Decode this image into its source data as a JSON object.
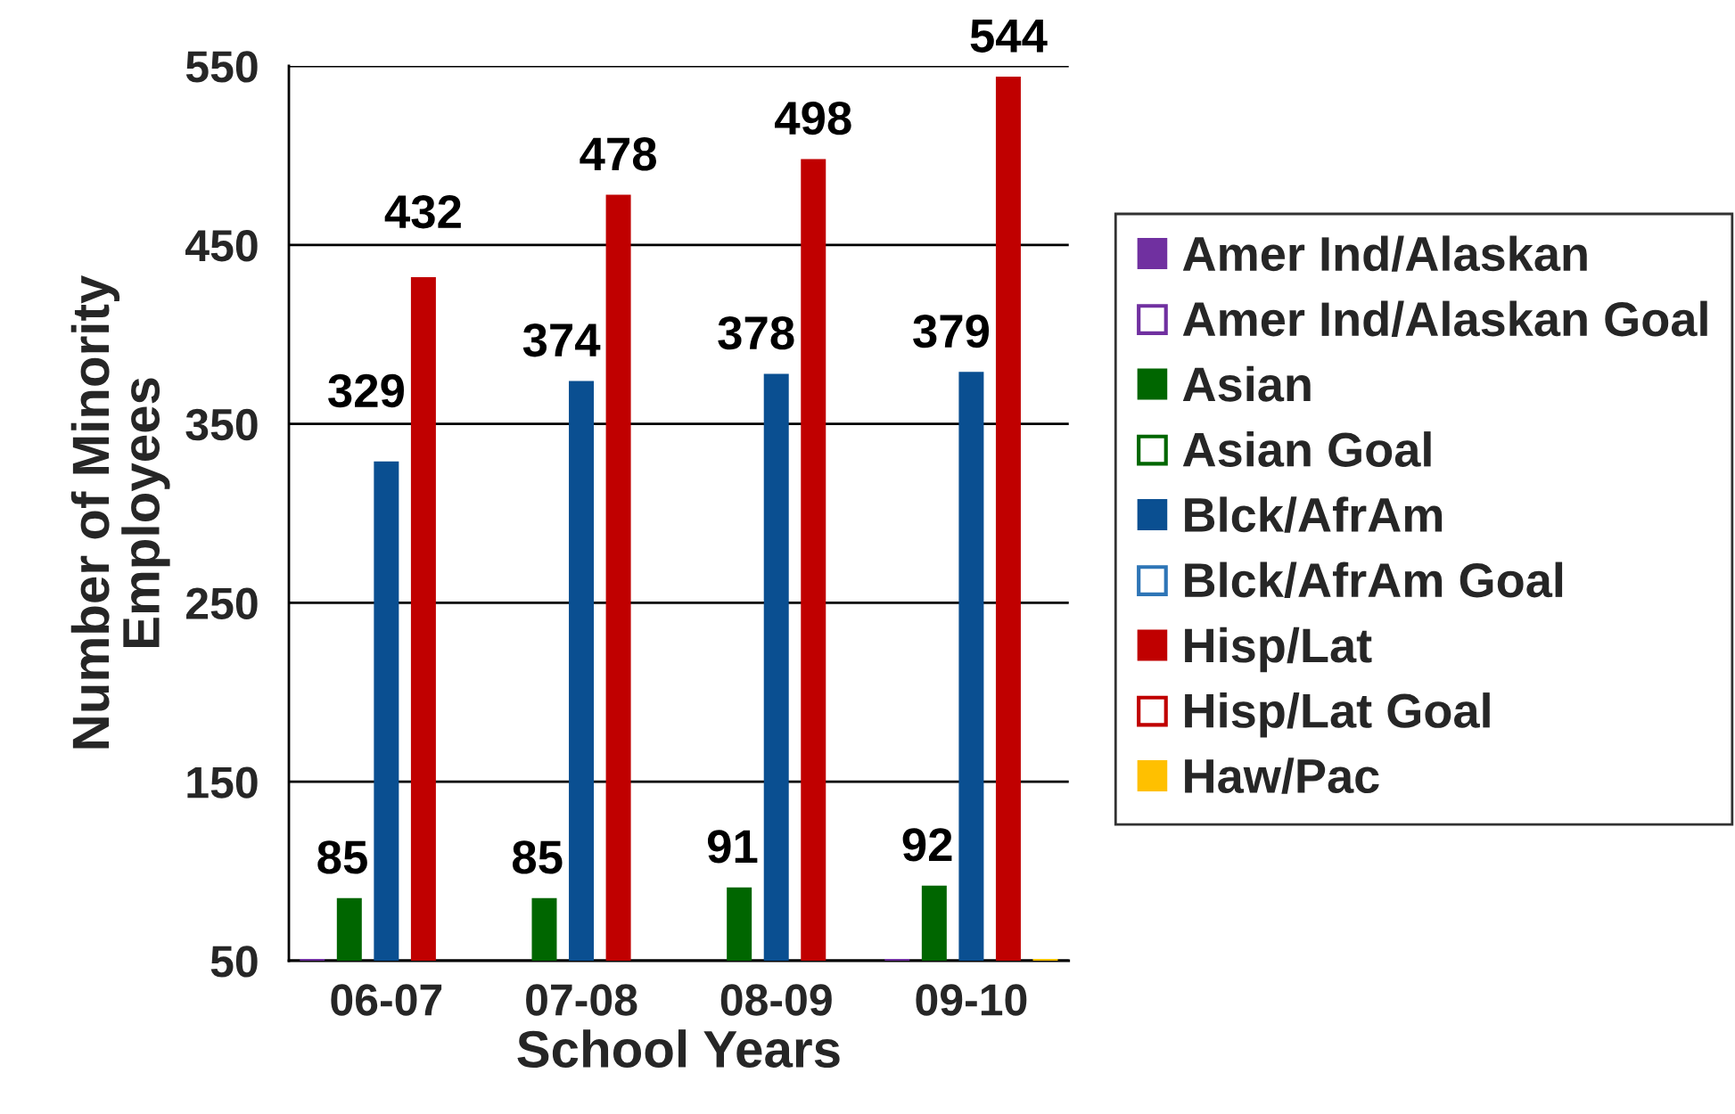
{
  "chart_data": {
    "type": "bar",
    "xlabel": "School Years",
    "ylabel": "Number of Minority\nEmployees",
    "categories": [
      "06-07",
      "07-08",
      "08-09",
      "09-10"
    ],
    "series": [
      {
        "name": "Amer Ind/Alaskan",
        "color": "#7030a0",
        "values": [
          51,
          null,
          null,
          51
        ]
      },
      {
        "name": "Amer Ind/Alaskan Goal",
        "type": "scatter",
        "marker": "square",
        "color": "#7030a0",
        "values": [
          null,
          null,
          null,
          null
        ]
      },
      {
        "name": "Asian",
        "color": "#006600",
        "values": [
          85,
          85,
          91,
          92
        ],
        "value_labels": [
          "85",
          "85",
          "91",
          "92"
        ]
      },
      {
        "name": "Asian Goal",
        "type": "scatter",
        "marker": "square",
        "color": "#006600",
        "values": [
          null,
          null,
          null,
          null
        ]
      },
      {
        "name": "Blck/AfrAm",
        "color": "#0a4f91",
        "values": [
          329,
          374,
          378,
          379
        ],
        "value_labels": [
          "329",
          "374",
          "378",
          "379"
        ]
      },
      {
        "name": "Blck/AfrAm Goal",
        "type": "scatter",
        "marker": "square",
        "color": "#2e75b6",
        "values": [
          null,
          null,
          null,
          null
        ]
      },
      {
        "name": "Hisp/Lat",
        "color": "#c00000",
        "values": [
          432,
          478,
          498,
          544
        ],
        "value_labels": [
          "432",
          "478",
          "498",
          "544"
        ]
      },
      {
        "name": "Hisp/Lat Goal",
        "type": "scatter",
        "marker": "square",
        "color": "#c00000",
        "values": [
          null,
          null,
          null,
          null
        ]
      },
      {
        "name": "Haw/Pac",
        "color": "#ffc000",
        "values": [
          null,
          null,
          null,
          51
        ]
      }
    ],
    "ylim": [
      50,
      550
    ],
    "yticks": [
      50,
      150,
      250,
      350,
      450,
      550
    ],
    "grid": "y",
    "legend": "right"
  }
}
